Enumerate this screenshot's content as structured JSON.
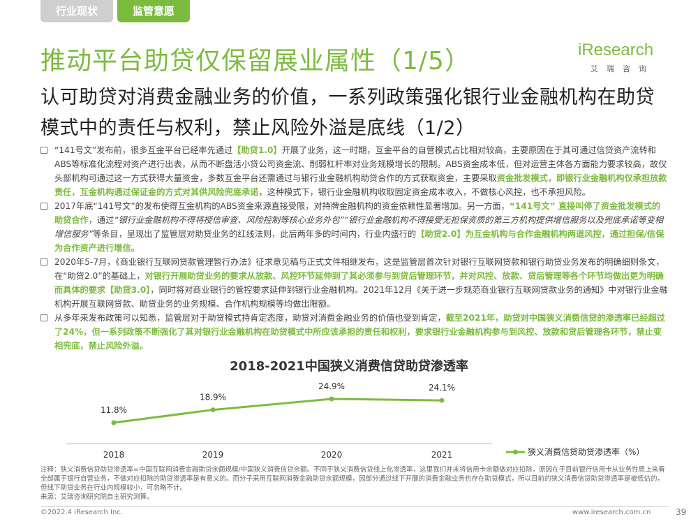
{
  "tabs": {
    "inactive": "行业现状",
    "active": "监管意愿"
  },
  "title": "推动平台助贷仅保留展业属性（1/5）",
  "logo": {
    "main": "iResearch",
    "sub": "艾瑞咨询"
  },
  "subtitle": "认可助贷对消费金融业务的价值，一系列政策强化银行业金融机构在助贷模式中的责任与权利，禁止风险外溢是底线（1/2）",
  "bullets": [
    {
      "segments": [
        {
          "t": "“141号文”发布前，很多互金平台已经率先通过",
          "s": ""
        },
        {
          "t": "【助贷1.0】",
          "s": "hl"
        },
        {
          "t": "开展了业务，这一时期，互金平台的自营模式占比相对较高，主要原因在于其可通过信贷资产流转和ABS等标准化流程对资产进行出表，从而不断盘活小贷公司资金流、削弱杠杆率对业务规模增长的限制。ABS资金成本低，但对运营主体各方面能力要求较高，故仅头部机构可通过这一方式获得大量资金，多数互金平台还需通过与银行业金融机构助贷合作的方式获取资金，主要采取",
          "s": ""
        },
        {
          "t": "资金批发模式，即银行业金融机构仅承担放款责任，互金机构通过保证金的方式对其供风险兜底承诺",
          "s": "hl"
        },
        {
          "t": "，这种模式下，银行业金融机构收取固定资金成本收入，不做核心风控，也不承担风险。",
          "s": ""
        }
      ]
    },
    {
      "segments": [
        {
          "t": "2017年底“141号文”的发布使得互金机构的ABS资金来源直接受限，对持牌金融机构的资金依赖性显著增加。另一方面，",
          "s": ""
        },
        {
          "t": "“141号文” 直接叫停了资金批发模式的助贷合作",
          "s": "hl"
        },
        {
          "t": "，通过",
          "s": ""
        },
        {
          "t": "“银行业金融机构不得将授信审查、风险控制等核心业务外包”“银行业金融机构不得接受无担保资质的第三方机构提供增信服务以及兜底承诺等变相增信服务”",
          "s": "it"
        },
        {
          "t": "等条目，呈现出了监管层对助贷业务的红线法则，此后两年多的时间内，行业内盛行的",
          "s": ""
        },
        {
          "t": "【助贷2.0】为互金机构与合作金融机构两道风控，通过担保/信保为合作资产进行增信。",
          "s": "hl"
        }
      ]
    },
    {
      "segments": [
        {
          "t": "2020年5-7月，《商业银行互联网贷款管理暂行办法》征求意见稿与正式文件相继发布，这是监管层首次针对银行互联网贷款和银行助贷业务发布的明确细则条文，在“助贷2.0”的基础上，",
          "s": ""
        },
        {
          "t": "对银行开展助贷业务的要求从放款、风控环节延伸到了其必须参与到贷后管理环节，并对风控、放款、贷后管理等各个环节均做出更为明确而具体的要求【助贷3.0】",
          "s": "hl"
        },
        {
          "t": "，同时将对商业银行的管控要求延伸到银行业金融机构。2021年12月《关于进一步规范商业银行互联网贷款业务的通知》中对银行业金融机构开展互联网贷款、助贷业务的业务规模、合作机构规模等均做出限额。",
          "s": ""
        }
      ]
    },
    {
      "segments": [
        {
          "t": "从多年来发布政策可以知悉，监管层对于助贷模式持肯定态度，助贷对消费金融业务的价值也受到肯定，",
          "s": ""
        },
        {
          "t": "截至2021年，助贷对中国狭义消费信贷的渗透率已经超过了24%，但一系列政策不断强化了其对银行业金融机构在助贷模式中所应该承担的责任和权利，要求银行业金融机构参与到风控、放款和贷后管理各环节，禁止变相兜底，禁止风险外溢。",
          "s": "hl"
        }
      ]
    }
  ],
  "chart_data": {
    "type": "line",
    "title": "2018-2021中国狭义消费信贷助贷渗透率",
    "categories": [
      "2018",
      "2019",
      "2020",
      "2021"
    ],
    "series": [
      {
        "name": "狭义消费信贷助贷渗透率（%）",
        "values": [
          11.8,
          18.9,
          24.9,
          24.1
        ]
      }
    ],
    "data_labels": [
      "11.8%",
      "18.9%",
      "24.9%",
      "24.1%"
    ],
    "color": "#7dbb3f"
  },
  "notes": [
    "注释：狭义消费信贷助贷渗透率=中国互联网消费金融助贷余额规模/中国狭义消费信贷余额。不同于狭义消费信贷线上化渗透率，这里我们并未将信用卡余额做对应扣除，原因在于目前银行信用卡从业务性质上来看全部属于银行自营业务，不做对应扣除的助贷渗透率是有意义的。而分子采用互联网消费金融助贷余额规模，因部分通过线下开展的消费金融业务也存在助贷模式，所以目前的狭义消费信贷助贷渗透率是被低估的，但线下助贷业务在行业内规模较小，可忽略不计。",
    "来源：艾瑞咨询研究院自主研究测算。"
  ],
  "footer": {
    "copyright": "©2022.4 iResearch Inc.",
    "website": "www.iresearch.com.cn",
    "page": "39"
  }
}
